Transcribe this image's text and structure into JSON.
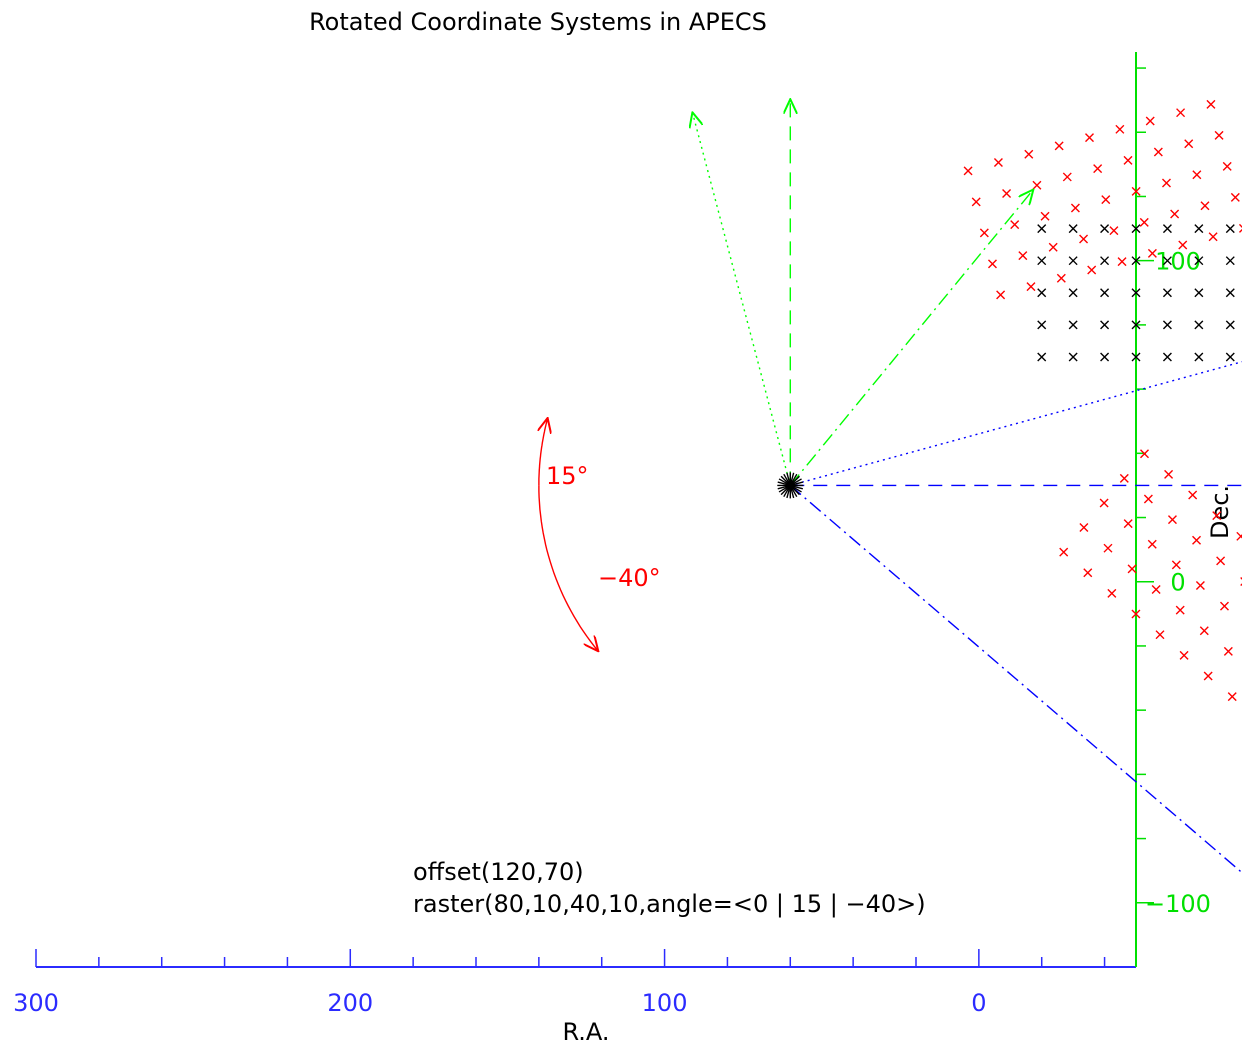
{
  "title": "Rotated Coordinate Systems in APECS",
  "x_axis": {
    "label": "R.A.",
    "range": [
      300,
      -50
    ],
    "ticks": [
      300,
      200,
      100,
      0
    ],
    "minor_step": 20,
    "color": "#2b2bff"
  },
  "y_axis": {
    "label": "Dec.",
    "range": [
      -120,
      165
    ],
    "ticks": [
      100,
      0,
      -100
    ],
    "tick_labels": [
      "100",
      "0",
      "−100"
    ],
    "minor_step": 20,
    "color": "#00e000"
  },
  "annotation": {
    "line1": "offset(120,70)",
    "line2": "raster(80,10,40,10,angle=<0 | 15 | −40>)"
  },
  "angle_labels": {
    "plus": "15°",
    "minus": "−40°"
  },
  "colors": {
    "raster_unrotated": "#000000",
    "raster_rotated": "#ff0000",
    "ra_axes": "#0000ff",
    "dec_axes": "#00ff00",
    "arcs": "#ff0000",
    "text": "#000000"
  },
  "chart_data": {
    "type": "scatter",
    "origin": [
      60,
      30
    ],
    "raster": {
      "start_x": 80,
      "step_x": 10,
      "start_y": 40,
      "step_y": 10,
      "nx": 9,
      "ny": 5
    },
    "rotations_deg": [
      0,
      15,
      -40
    ],
    "axis_length": 225,
    "angle_arc_radius": 80
  }
}
